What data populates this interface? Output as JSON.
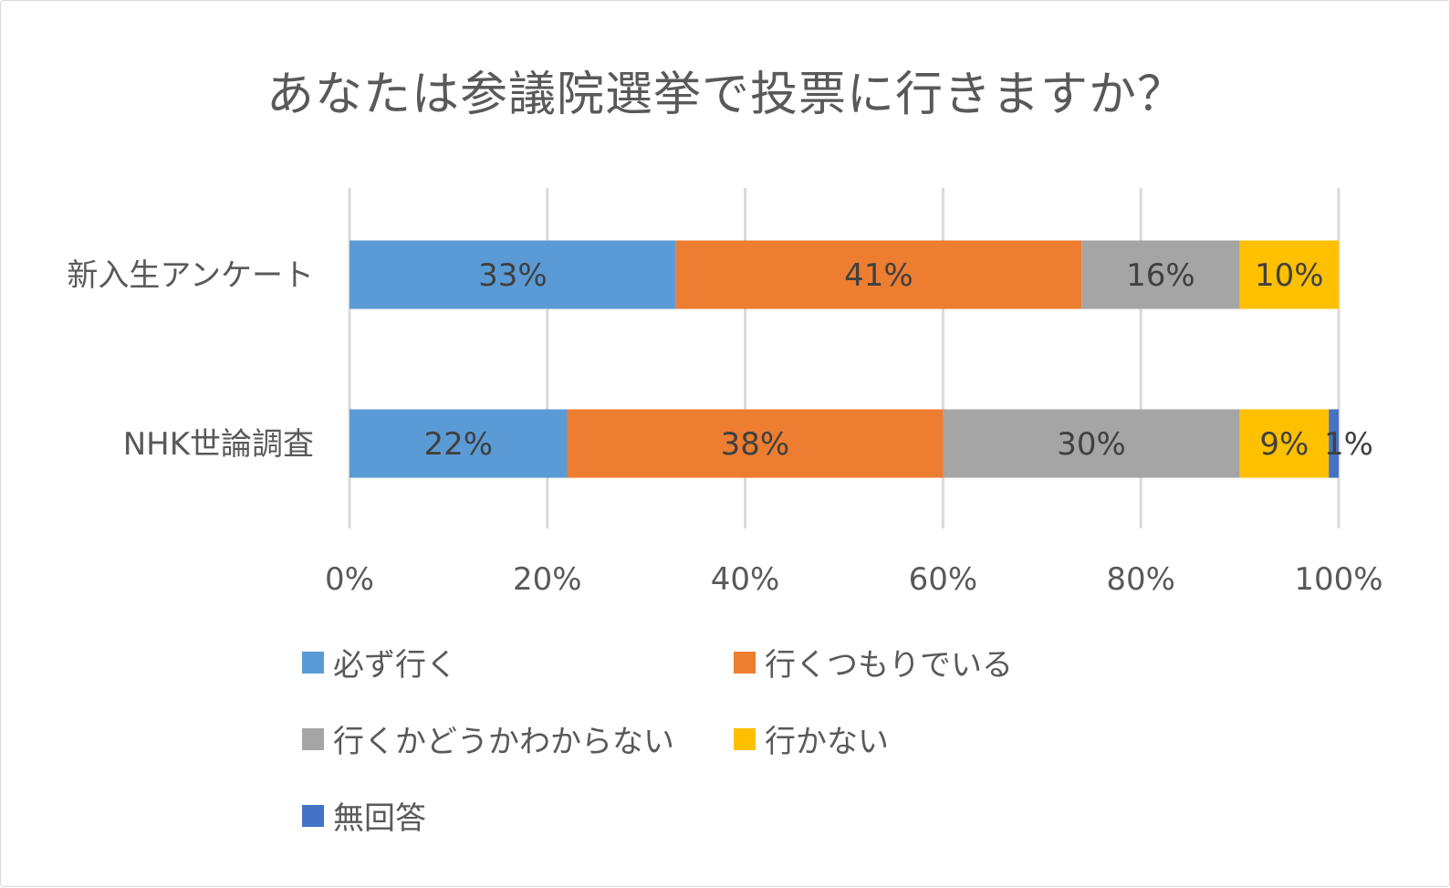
{
  "chart_data": {
    "type": "bar",
    "orientation": "horizontal",
    "stacked": true,
    "title": "あなたは参議院選挙で投票に行きますか？",
    "categories": [
      "新入生アンケート",
      "NHK世論調査"
    ],
    "series": [
      {
        "name": "必ず行く",
        "color": "#5b9bd5",
        "values": [
          33,
          22
        ],
        "labels": [
          "33%",
          "22%"
        ]
      },
      {
        "name": "行くつもりでいる",
        "color": "#ed7d31",
        "values": [
          41,
          38
        ],
        "labels": [
          "41%",
          "38%"
        ]
      },
      {
        "name": "行くかどうかわからない",
        "color": "#a5a5a5",
        "values": [
          16,
          30
        ],
        "labels": [
          "16%",
          "30%"
        ]
      },
      {
        "name": "行かない",
        "color": "#ffc000",
        "values": [
          10,
          9
        ],
        "labels": [
          "10%",
          "9%"
        ]
      },
      {
        "name": "無回答",
        "color": "#4472c4",
        "values": [
          0,
          1
        ],
        "labels": [
          "",
          "1%"
        ]
      }
    ],
    "xlim": [
      0,
      100
    ],
    "x_ticks": [
      "0%",
      "20%",
      "40%",
      "60%",
      "80%",
      "100%"
    ],
    "grid": true,
    "legend_position": "bottom"
  }
}
